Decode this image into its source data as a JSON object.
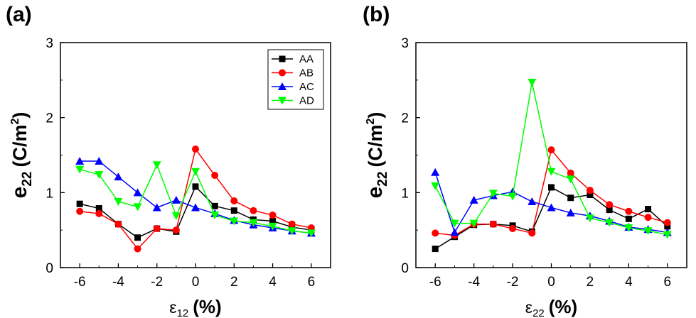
{
  "chart_data": [
    {
      "type": "line",
      "panel_label": "(a)",
      "xlabel": {
        "symbol": "ε",
        "subscript": "12",
        "unit": "(%)"
      },
      "ylabel": {
        "symbol": "e",
        "subscript": "22",
        "unit_open": "(C/m",
        "unit_sup": "2",
        "unit_close": ")"
      },
      "xlim": [
        -7,
        7
      ],
      "ylim": [
        0,
        3
      ],
      "xticks": [
        "-6",
        "-4",
        "-2",
        "0",
        "2",
        "4",
        "6"
      ],
      "yticks": [
        "0",
        "1",
        "2",
        "3"
      ],
      "grid": false,
      "legend_position": "top-right",
      "x": [
        -6,
        -5,
        -4,
        -3,
        -2,
        -1,
        0,
        1,
        2,
        3,
        4,
        5,
        6
      ],
      "series": [
        {
          "name": "AA",
          "color": "#000000",
          "marker": "square",
          "values": [
            0.85,
            0.79,
            0.58,
            0.4,
            0.52,
            0.48,
            1.08,
            0.82,
            0.76,
            0.64,
            0.62,
            0.54,
            0.5
          ]
        },
        {
          "name": "AB",
          "color": "#ff0000",
          "marker": "circle",
          "values": [
            0.75,
            0.72,
            0.58,
            0.25,
            0.52,
            0.5,
            1.58,
            1.23,
            0.89,
            0.76,
            0.7,
            0.58,
            0.53
          ]
        },
        {
          "name": "AC",
          "color": "#0000ff",
          "marker": "triangle-up",
          "values": [
            1.42,
            1.42,
            1.21,
            1.0,
            0.8,
            0.9,
            0.8,
            0.72,
            0.63,
            0.57,
            0.53,
            0.49,
            0.46
          ]
        },
        {
          "name": "AD",
          "color": "#00ff00",
          "marker": "triangle-down",
          "values": [
            1.31,
            1.24,
            0.88,
            0.81,
            1.37,
            0.69,
            1.28,
            0.7,
            0.62,
            0.6,
            0.55,
            0.49,
            0.46
          ]
        }
      ]
    },
    {
      "type": "line",
      "panel_label": "(b)",
      "xlabel": {
        "symbol": "ε",
        "subscript": "22",
        "unit": "(%)"
      },
      "ylabel": {
        "symbol": "e",
        "subscript": "22",
        "unit_open": "(C/m",
        "unit_sup": "2",
        "unit_close": ")"
      },
      "xlim": [
        -7,
        7
      ],
      "ylim": [
        0,
        3
      ],
      "xticks": [
        "-6",
        "-4",
        "-2",
        "0",
        "2",
        "4",
        "6"
      ],
      "yticks": [
        "0",
        "1",
        "2",
        "3"
      ],
      "grid": false,
      "x": [
        -6,
        -5,
        -4,
        -3,
        -2,
        -1,
        0,
        1,
        2,
        3,
        4,
        5,
        6
      ],
      "series": [
        {
          "color": "#000000",
          "marker": "square",
          "values": [
            0.25,
            0.41,
            0.57,
            0.58,
            0.56,
            0.48,
            1.07,
            0.93,
            0.97,
            0.77,
            0.65,
            0.78,
            0.55
          ]
        },
        {
          "color": "#ff0000",
          "marker": "circle",
          "values": [
            0.46,
            0.43,
            0.58,
            0.58,
            0.52,
            0.46,
            1.57,
            1.26,
            1.03,
            0.84,
            0.75,
            0.67,
            0.6
          ]
        },
        {
          "color": "#0000ff",
          "marker": "triangle-up",
          "values": [
            1.27,
            0.47,
            0.9,
            0.96,
            1.01,
            0.88,
            0.8,
            0.73,
            0.69,
            0.62,
            0.54,
            0.51,
            0.47
          ]
        },
        {
          "color": "#00ff00",
          "marker": "triangle-down",
          "values": [
            1.09,
            0.59,
            0.59,
            0.99,
            0.95,
            2.47,
            1.28,
            1.18,
            0.66,
            0.6,
            0.53,
            0.49,
            0.44
          ]
        }
      ]
    }
  ]
}
